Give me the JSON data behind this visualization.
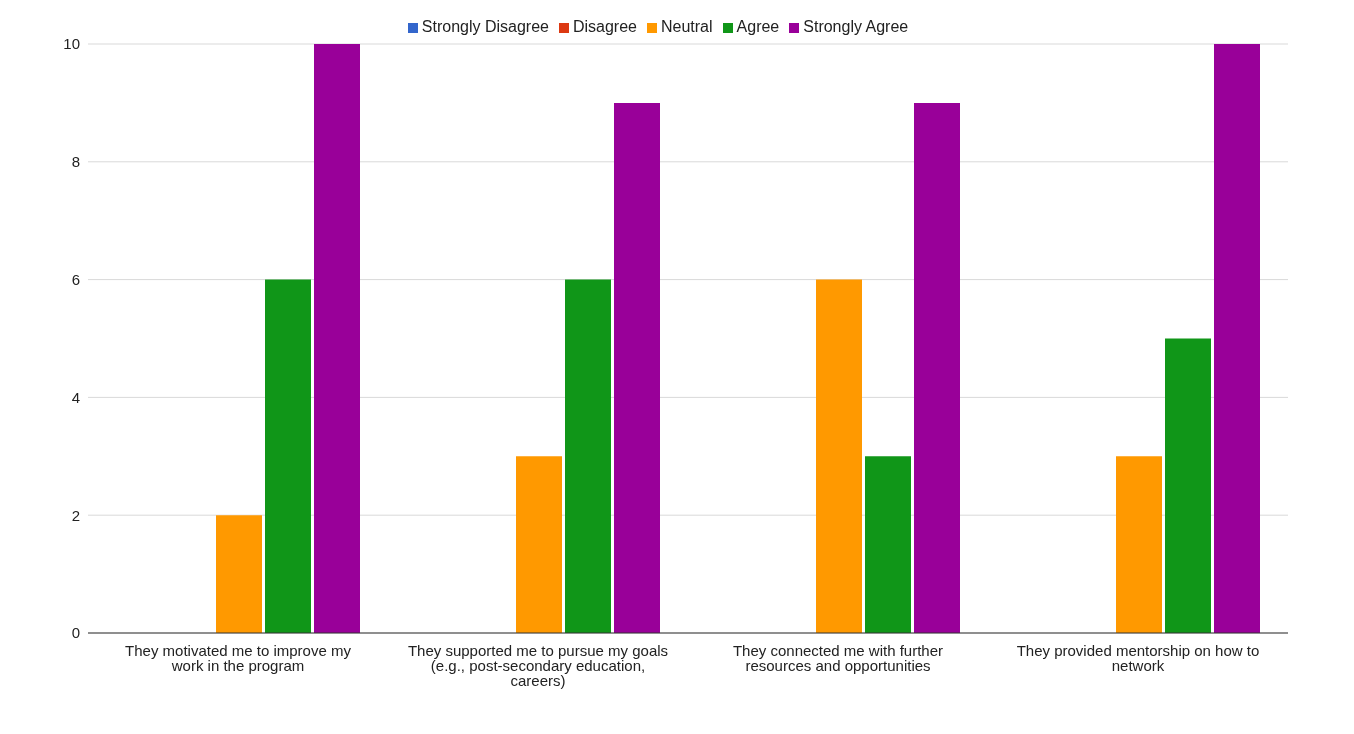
{
  "chart_data": {
    "type": "bar",
    "categories": [
      "They motivated me to improve my work in the program",
      "They supported me to pursue my goals (e.g., post-secondary education, careers)",
      "They connected me with further resources and opportunities",
      "They provided mentorship on how to network"
    ],
    "series": [
      {
        "name": "Strongly Disagree",
        "color": "#3366cc",
        "values": [
          0,
          0,
          0,
          0
        ]
      },
      {
        "name": "Disagree",
        "color": "#dc3912",
        "values": [
          0,
          0,
          0,
          0
        ]
      },
      {
        "name": "Neutral",
        "color": "#ff9900",
        "values": [
          2,
          3,
          6,
          3
        ]
      },
      {
        "name": "Agree",
        "color": "#109618",
        "values": [
          6,
          6,
          3,
          5
        ]
      },
      {
        "name": "Strongly Agree",
        "color": "#990099",
        "values": [
          10,
          9,
          9,
          10
        ]
      }
    ],
    "ylim": [
      0,
      10
    ],
    "yticks": [
      0,
      2,
      4,
      6,
      8,
      10
    ],
    "grid": "y",
    "legend": "top"
  }
}
